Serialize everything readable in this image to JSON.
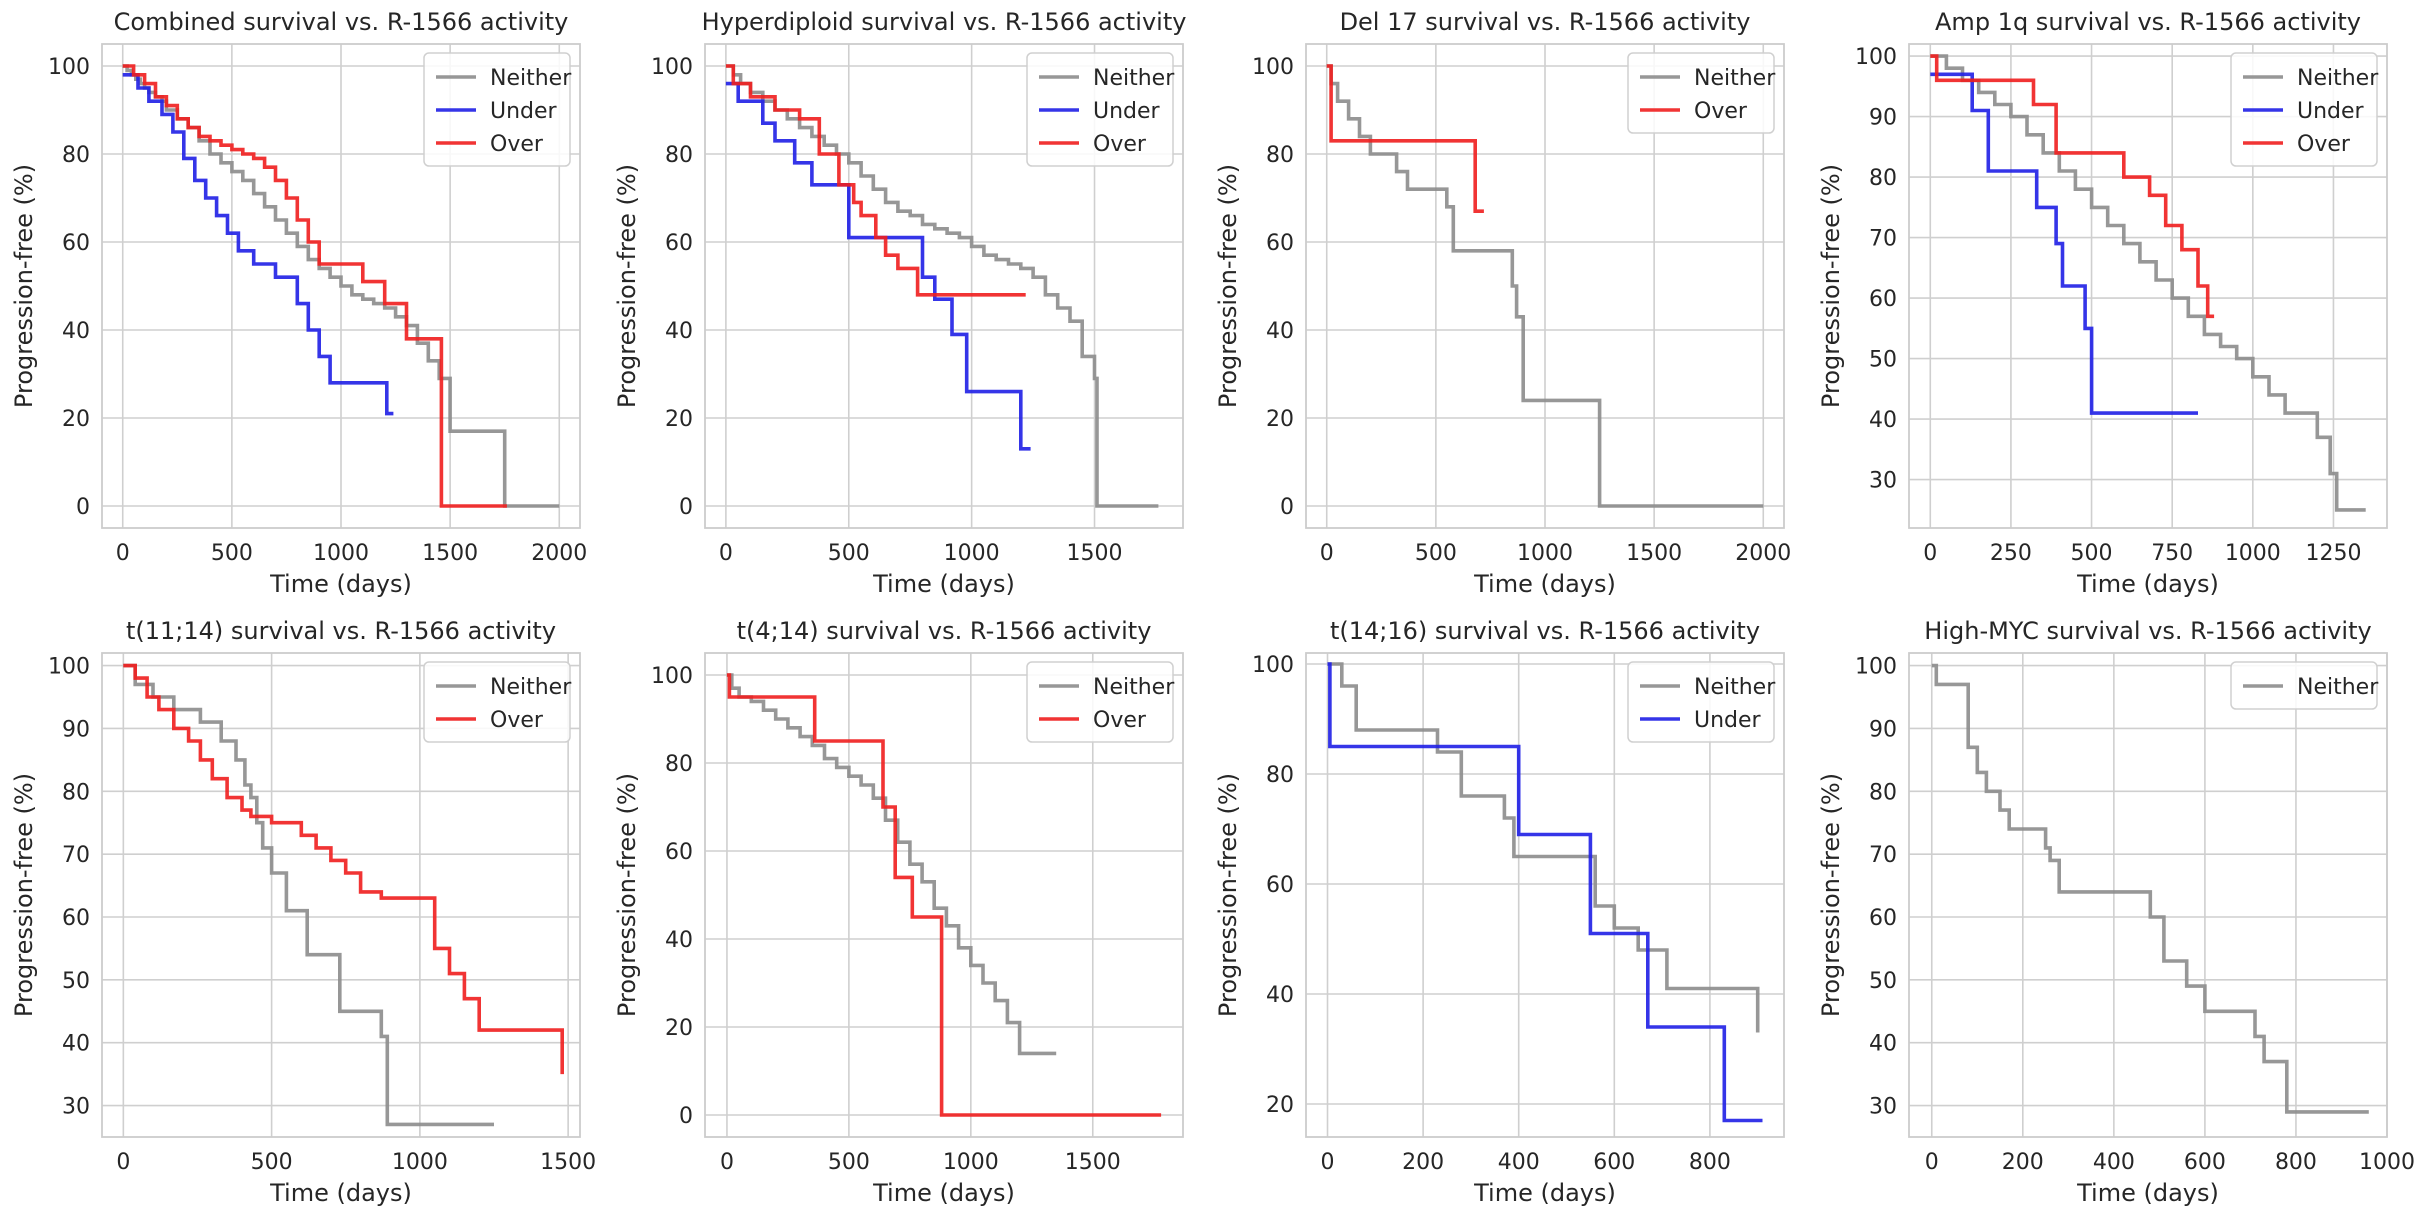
{
  "colors": {
    "Neither": "#8c8c8c",
    "Under": "#1f1fe6",
    "Over": "#f01e1e",
    "grid": "#cfcfcf",
    "frame": "#cccccc"
  },
  "chart_data": [
    {
      "type": "line",
      "title": "Combined survival vs. R-1566 activity",
      "xlabel": "Time (days)",
      "ylabel": "Progression-free (%)",
      "xlim": [
        -95,
        2095
      ],
      "ylim": [
        -5,
        105
      ],
      "xticks": [
        0,
        500,
        1000,
        1500,
        2000
      ],
      "yticks": [
        0,
        20,
        40,
        60,
        80,
        100
      ],
      "grid": true,
      "legend": "top-right",
      "series": [
        {
          "name": "Neither",
          "x": [
            0,
            20,
            40,
            60,
            80,
            100,
            120,
            150,
            180,
            200,
            250,
            300,
            350,
            400,
            450,
            500,
            550,
            600,
            650,
            700,
            750,
            800,
            850,
            900,
            950,
            1000,
            1050,
            1100,
            1150,
            1200,
            1250,
            1300,
            1350,
            1400,
            1450,
            1500,
            1750,
            2000
          ],
          "y": [
            100,
            99,
            98,
            97,
            96,
            95,
            94,
            93,
            92,
            90,
            88,
            86,
            83,
            80,
            78,
            76,
            74,
            71,
            68,
            65,
            62,
            59,
            56,
            54,
            52,
            50,
            48,
            47,
            46,
            45,
            43,
            41,
            37,
            33,
            29,
            17,
            0,
            0
          ]
        },
        {
          "name": "Under",
          "x": [
            0,
            70,
            120,
            180,
            230,
            280,
            330,
            380,
            430,
            480,
            530,
            600,
            700,
            800,
            850,
            900,
            950,
            1210,
            1240
          ],
          "y": [
            98,
            95,
            92,
            89,
            85,
            79,
            74,
            70,
            66,
            62,
            58,
            55,
            52,
            46,
            40,
            34,
            28,
            21,
            21
          ]
        },
        {
          "name": "Over",
          "x": [
            0,
            50,
            100,
            150,
            200,
            250,
            300,
            350,
            400,
            450,
            500,
            550,
            600,
            650,
            700,
            750,
            800,
            850,
            900,
            1000,
            1100,
            1200,
            1300,
            1450,
            1460,
            1760
          ],
          "y": [
            100,
            98,
            96,
            93,
            91,
            88,
            86,
            84,
            83,
            82,
            81,
            80,
            79,
            77,
            74,
            70,
            65,
            60,
            55,
            55,
            51,
            46,
            38,
            38,
            0,
            0
          ]
        }
      ]
    },
    {
      "type": "line",
      "title": "Hyperdiploid survival vs. R-1566 activity",
      "xlabel": "Time (days)",
      "ylabel": "Progression-free (%)",
      "xlim": [
        -85,
        1860
      ],
      "ylim": [
        -5,
        105
      ],
      "xticks": [
        0,
        500,
        1000,
        1500
      ],
      "yticks": [
        0,
        20,
        40,
        60,
        80,
        100
      ],
      "grid": true,
      "legend": "top-right",
      "series": [
        {
          "name": "Neither",
          "x": [
            0,
            30,
            60,
            100,
            150,
            200,
            250,
            300,
            350,
            400,
            450,
            500,
            550,
            600,
            650,
            700,
            750,
            800,
            850,
            900,
            950,
            1000,
            1050,
            1100,
            1150,
            1200,
            1250,
            1300,
            1350,
            1400,
            1450,
            1480,
            1500,
            1510,
            1520,
            1760
          ],
          "y": [
            100,
            98,
            96,
            94,
            92,
            90,
            88,
            86,
            84,
            82,
            80,
            78,
            75,
            72,
            69,
            67,
            66,
            64,
            63,
            62,
            61,
            59,
            57,
            56,
            55,
            54,
            52,
            48,
            45,
            42,
            34,
            34,
            29,
            0,
            0,
            0
          ]
        },
        {
          "name": "Under",
          "x": [
            0,
            50,
            150,
            200,
            280,
            350,
            500,
            800,
            850,
            920,
            980,
            1200,
            1240
          ],
          "y": [
            96,
            92,
            87,
            83,
            78,
            73,
            61,
            52,
            47,
            39,
            26,
            13,
            13
          ]
        },
        {
          "name": "Over",
          "x": [
            0,
            30,
            100,
            200,
            300,
            380,
            460,
            520,
            550,
            610,
            650,
            700,
            780,
            1220
          ],
          "y": [
            100,
            96,
            93,
            90,
            88,
            80,
            73,
            69,
            66,
            61,
            57,
            54,
            48,
            48
          ]
        }
      ]
    },
    {
      "type": "line",
      "title": "Del 17 survival vs. R-1566 activity",
      "xlabel": "Time (days)",
      "ylabel": "Progression-free (%)",
      "xlim": [
        -95,
        2095
      ],
      "ylim": [
        -5,
        105
      ],
      "xticks": [
        0,
        500,
        1000,
        1500,
        2000
      ],
      "yticks": [
        0,
        20,
        40,
        60,
        80,
        100
      ],
      "grid": true,
      "legend": "top-right",
      "series": [
        {
          "name": "Neither",
          "x": [
            0,
            20,
            50,
            100,
            150,
            200,
            320,
            370,
            550,
            580,
            830,
            850,
            870,
            900,
            1250,
            2000
          ],
          "y": [
            100,
            96,
            92,
            88,
            84,
            80,
            76,
            72,
            68,
            58,
            58,
            50,
            43,
            24,
            0,
            0
          ]
        },
        {
          "name": "Over",
          "x": [
            0,
            20,
            680,
            720
          ],
          "y": [
            100,
            83,
            67,
            67
          ]
        }
      ]
    },
    {
      "type": "line",
      "title": "Amp 1q survival vs. R-1566 activity",
      "xlabel": "Time (days)",
      "ylabel": "Progression-free (%)",
      "xlim": [
        -66,
        1416
      ],
      "ylim": [
        22,
        102
      ],
      "xticks": [
        0,
        250,
        500,
        750,
        1000,
        1250
      ],
      "yticks": [
        30,
        40,
        50,
        60,
        70,
        80,
        90,
        100
      ],
      "grid": true,
      "legend": "top-right",
      "series": [
        {
          "name": "Neither",
          "x": [
            0,
            50,
            100,
            150,
            200,
            250,
            300,
            350,
            400,
            450,
            500,
            550,
            600,
            650,
            700,
            750,
            800,
            850,
            900,
            950,
            1000,
            1050,
            1100,
            1150,
            1200,
            1240,
            1260,
            1350
          ],
          "y": [
            100,
            98,
            96,
            94,
            92,
            90,
            87,
            84,
            81,
            78,
            75,
            72,
            69,
            66,
            63,
            60,
            57,
            54,
            52,
            50,
            47,
            44,
            41,
            41,
            37,
            31,
            25,
            25
          ]
        },
        {
          "name": "Under",
          "x": [
            0,
            130,
            180,
            290,
            330,
            390,
            410,
            440,
            480,
            500,
            830
          ],
          "y": [
            97,
            91,
            81,
            81,
            75,
            69,
            62,
            62,
            55,
            41,
            41
          ]
        },
        {
          "name": "Over",
          "x": [
            0,
            20,
            250,
            320,
            390,
            600,
            680,
            730,
            780,
            830,
            860,
            880
          ],
          "y": [
            100,
            96,
            96,
            92,
            84,
            80,
            77,
            72,
            68,
            62,
            57,
            57
          ]
        }
      ]
    },
    {
      "type": "line",
      "title": "t(11;14) survival vs. R-1566 activity",
      "xlabel": "Time (days)",
      "ylabel": "Progression-free (%)",
      "xlim": [
        -72,
        1540
      ],
      "ylim": [
        25,
        102
      ],
      "xticks": [
        0,
        500,
        1000,
        1500
      ],
      "yticks": [
        30,
        40,
        50,
        60,
        70,
        80,
        90,
        100
      ],
      "grid": true,
      "legend": "top-right",
      "series": [
        {
          "name": "Neither",
          "x": [
            0,
            40,
            100,
            170,
            260,
            330,
            380,
            410,
            430,
            450,
            470,
            500,
            550,
            620,
            730,
            870,
            890,
            1250
          ],
          "y": [
            100,
            97,
            95,
            93,
            91,
            88,
            85,
            81,
            79,
            75,
            71,
            67,
            61,
            54,
            45,
            41,
            27,
            27
          ]
        },
        {
          "name": "Over",
          "x": [
            0,
            40,
            80,
            120,
            170,
            220,
            260,
            300,
            350,
            400,
            430,
            500,
            600,
            650,
            700,
            750,
            800,
            870,
            1050,
            1100,
            1150,
            1200,
            1480
          ],
          "y": [
            100,
            98,
            95,
            93,
            90,
            88,
            85,
            82,
            79,
            77,
            76,
            75,
            73,
            71,
            69,
            67,
            64,
            63,
            55,
            51,
            47,
            42,
            35
          ]
        }
      ]
    },
    {
      "type": "line",
      "title": "t(4;14) survival vs. R-1566 activity",
      "xlabel": "Time (days)",
      "ylabel": "Progression-free (%)",
      "xlim": [
        -90,
        1870
      ],
      "ylim": [
        -5,
        105
      ],
      "xticks": [
        0,
        500,
        1000,
        1500
      ],
      "yticks": [
        0,
        20,
        40,
        60,
        80,
        100
      ],
      "grid": true,
      "legend": "top-right",
      "series": [
        {
          "name": "Neither",
          "x": [
            0,
            20,
            50,
            100,
            150,
            200,
            250,
            300,
            350,
            400,
            450,
            500,
            550,
            600,
            650,
            700,
            750,
            800,
            850,
            900,
            950,
            1000,
            1050,
            1100,
            1150,
            1200,
            1350
          ],
          "y": [
            100,
            97,
            95,
            94,
            92,
            90,
            88,
            86,
            84,
            81,
            79,
            77,
            75,
            72,
            67,
            62,
            57,
            53,
            47,
            43,
            38,
            34,
            30,
            26,
            21,
            14,
            14
          ]
        },
        {
          "name": "Over",
          "x": [
            0,
            10,
            360,
            600,
            640,
            690,
            760,
            880,
            1780
          ],
          "y": [
            100,
            95,
            85,
            85,
            70,
            54,
            45,
            0,
            0
          ]
        }
      ]
    },
    {
      "type": "line",
      "title": "t(14;16) survival vs. R-1566 activity",
      "xlabel": "Time (days)",
      "ylabel": "Progression-free (%)",
      "xlim": [
        -45,
        955
      ],
      "ylim": [
        14,
        102
      ],
      "xticks": [
        0,
        200,
        400,
        600,
        800
      ],
      "yticks": [
        20,
        40,
        60,
        80,
        100
      ],
      "grid": true,
      "legend": "top-right",
      "series": [
        {
          "name": "Neither",
          "x": [
            0,
            30,
            60,
            200,
            230,
            280,
            350,
            370,
            390,
            550,
            560,
            600,
            650,
            710,
            870,
            900
          ],
          "y": [
            100,
            96,
            88,
            88,
            84,
            76,
            76,
            72,
            65,
            65,
            56,
            52,
            48,
            41,
            41,
            33
          ]
        },
        {
          "name": "Under",
          "x": [
            0,
            5,
            400,
            550,
            670,
            830,
            910
          ],
          "y": [
            100,
            85,
            69,
            51,
            34,
            17,
            17
          ]
        }
      ]
    },
    {
      "type": "line",
      "title": "High-MYC survival vs. R-1566 activity",
      "xlabel": "Time (days)",
      "ylabel": "Progression-free (%)",
      "xlim": [
        -50,
        1000
      ],
      "ylim": [
        25,
        102
      ],
      "xticks": [
        0,
        200,
        400,
        600,
        800,
        1000
      ],
      "yticks": [
        30,
        40,
        50,
        60,
        70,
        80,
        90,
        100
      ],
      "grid": true,
      "legend": "top-right",
      "series": [
        {
          "name": "Neither",
          "x": [
            0,
            10,
            80,
            100,
            120,
            150,
            170,
            200,
            250,
            260,
            280,
            320,
            460,
            480,
            510,
            560,
            600,
            640,
            710,
            730,
            780,
            960
          ],
          "y": [
            100,
            97,
            87,
            83,
            80,
            77,
            74,
            74,
            71,
            69,
            64,
            64,
            64,
            60,
            53,
            49,
            45,
            45,
            41,
            37,
            29,
            29
          ]
        }
      ]
    }
  ]
}
